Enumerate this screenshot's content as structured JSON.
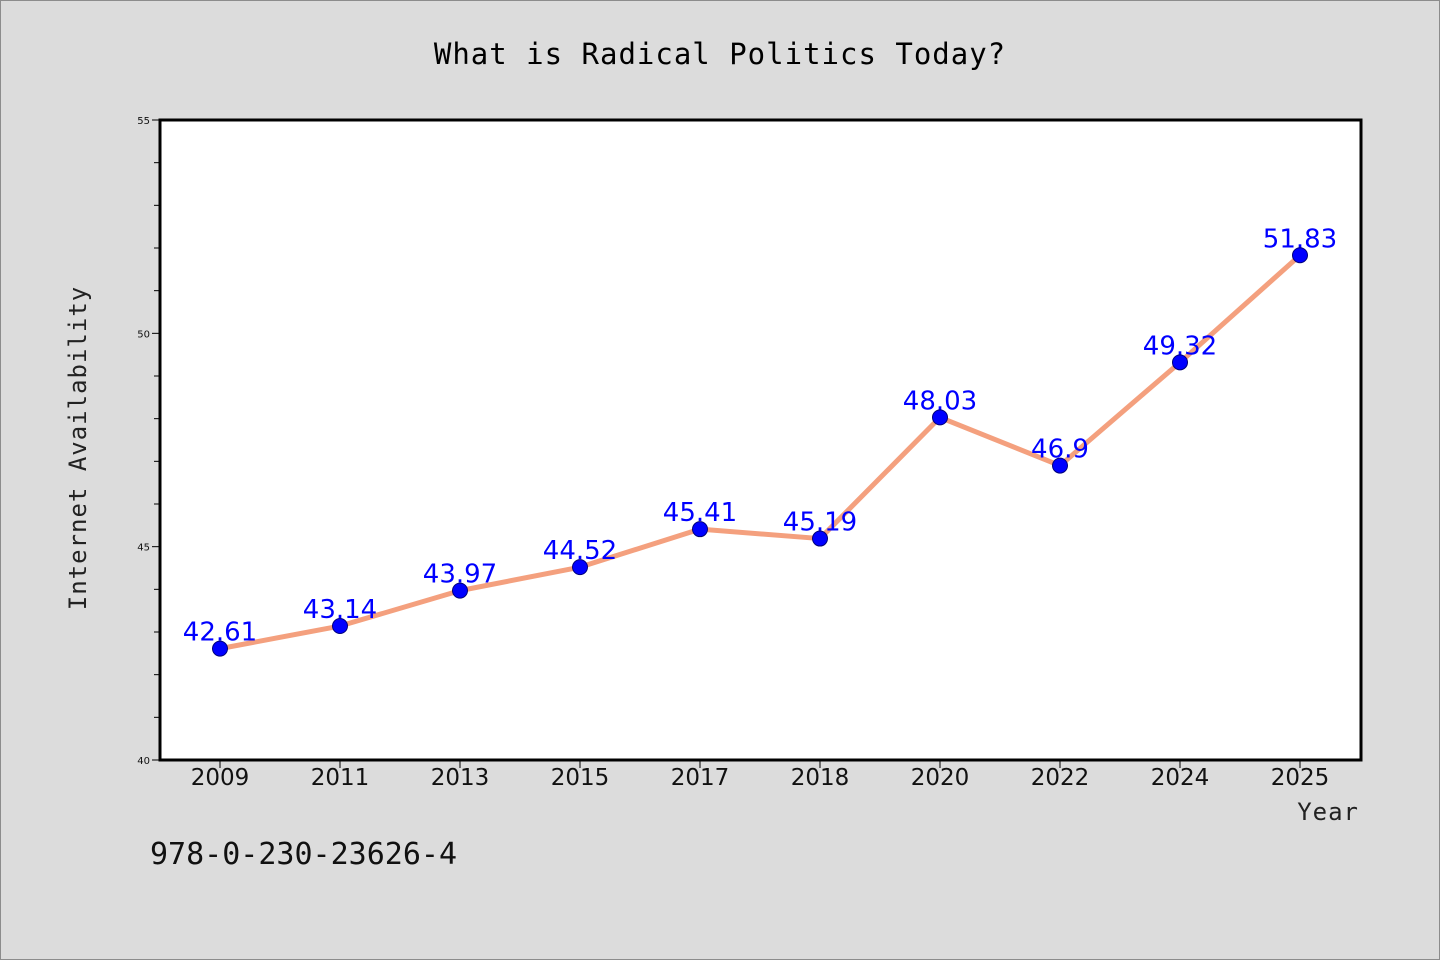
{
  "isbn": "978-0-230-23626-4",
  "chart_data": {
    "type": "line",
    "title": "What is Radical Politics Today?",
    "xlabel": "Year",
    "ylabel": "Internet Availability",
    "categories": [
      "2009",
      "2011",
      "2013",
      "2015",
      "2017",
      "2018",
      "2020",
      "2022",
      "2024",
      "2025"
    ],
    "values": [
      42.61,
      43.14,
      43.97,
      44.52,
      45.41,
      45.19,
      48.03,
      46.9,
      49.32,
      51.83
    ],
    "data_labels": [
      "42.61",
      "43.14",
      "43.97",
      "44.52",
      "45.41",
      "45.19",
      "48.03",
      "46.9",
      "49.32",
      "51.83"
    ],
    "ylim": [
      40,
      55
    ],
    "yticks": [
      40,
      45,
      50,
      55
    ],
    "line_color": "#f4a07e",
    "marker_color": "#0000ff",
    "label_color": "#0000ff",
    "plot_background": "#ffffff",
    "page_background": "#dcdcdc",
    "grid": false,
    "legend": "none"
  }
}
